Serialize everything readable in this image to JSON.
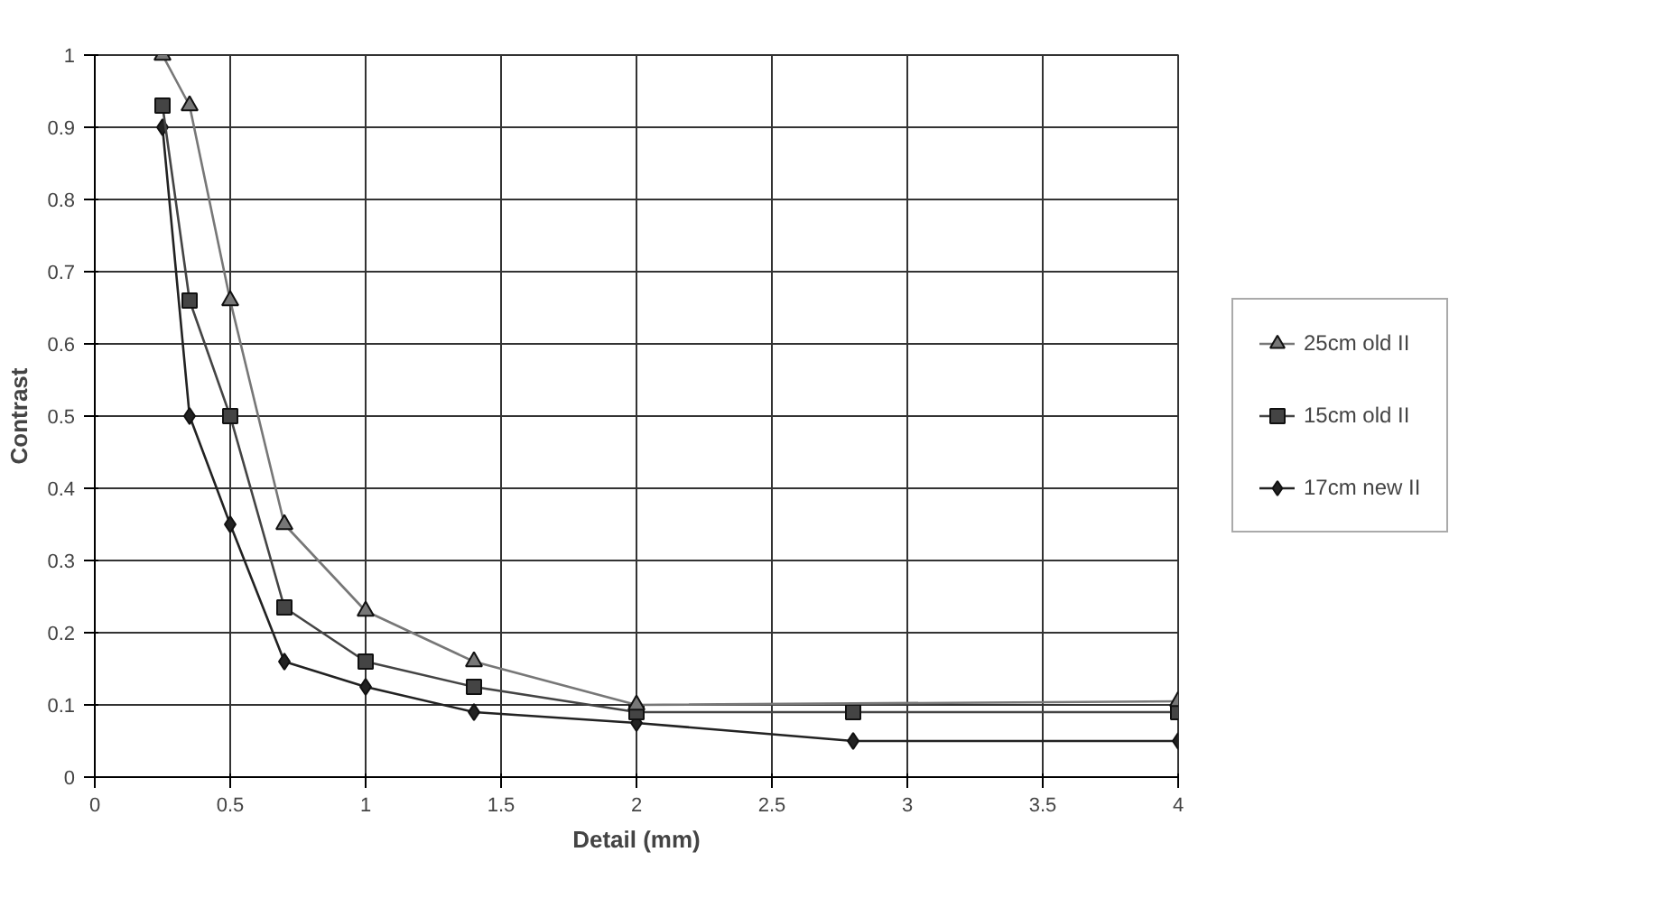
{
  "chart_data": {
    "type": "line",
    "xlabel": "Detail (mm)",
    "ylabel": "Contrast",
    "xlim": [
      0,
      4
    ],
    "ylim": [
      0,
      1
    ],
    "xticks": [
      0,
      0.5,
      1,
      1.5,
      2,
      2.5,
      3,
      3.5,
      4
    ],
    "yticks": [
      0,
      0.1,
      0.2,
      0.3,
      0.4,
      0.5,
      0.6,
      0.7,
      0.8,
      0.9,
      1
    ],
    "grid": true,
    "legend": "right",
    "series": [
      {
        "name": "25cm old II",
        "color": "#777777",
        "marker": "triangle",
        "x": [
          0.25,
          0.35,
          0.5,
          0.7,
          1,
          1.4,
          2,
          4
        ],
        "values": [
          1.0,
          0.93,
          0.66,
          0.35,
          0.23,
          0.16,
          0.1,
          0.105
        ]
      },
      {
        "name": "15cm old II",
        "color": "#444444",
        "marker": "square",
        "x": [
          0.25,
          0.35,
          0.5,
          0.7,
          1,
          1.4,
          2,
          2.8,
          4
        ],
        "values": [
          0.93,
          0.66,
          0.5,
          0.235,
          0.16,
          0.125,
          0.09,
          0.09,
          0.09
        ]
      },
      {
        "name": "17cm new II",
        "color": "#222222",
        "marker": "diamond",
        "x": [
          0.25,
          0.35,
          0.5,
          0.7,
          1,
          1.4,
          2,
          2.8,
          4
        ],
        "values": [
          0.9,
          0.5,
          0.35,
          0.16,
          0.125,
          0.09,
          0.075,
          0.05,
          0.05
        ]
      }
    ]
  }
}
